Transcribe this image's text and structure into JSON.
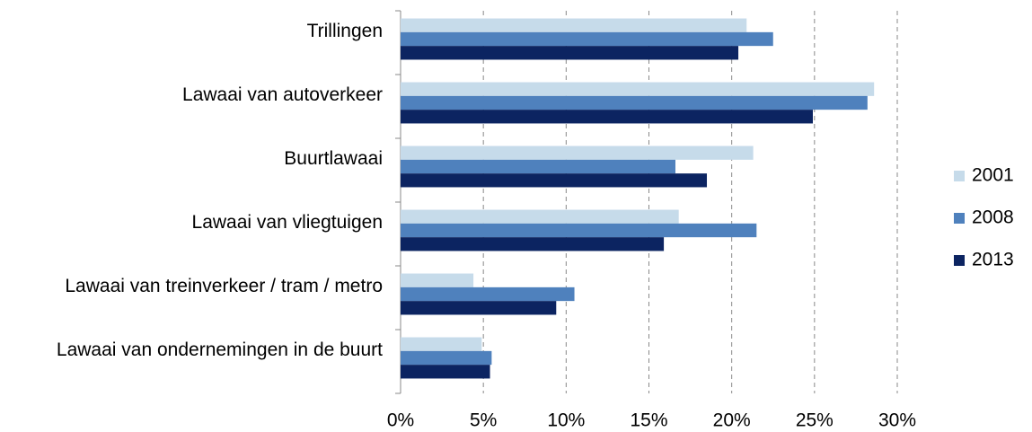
{
  "chart_data": {
    "type": "hbar",
    "categories": [
      "Trillingen",
      "Lawaai van autoverkeer",
      "Buurtlawaai",
      "Lawaai van vliegtuigen",
      "Lawaai van treinverkeer / tram / metro",
      "Lawaai van ondernemingen in de buurt"
    ],
    "series": [
      {
        "name": "2001",
        "color": "#c6dbea",
        "values": [
          20.9,
          28.6,
          21.3,
          16.8,
          4.4,
          4.9
        ]
      },
      {
        "name": "2008",
        "color": "#4f81bd",
        "values": [
          22.5,
          28.2,
          16.6,
          21.5,
          10.5,
          5.5
        ]
      },
      {
        "name": "2013",
        "color": "#0c2461",
        "values": [
          20.4,
          24.9,
          18.5,
          15.9,
          9.4,
          5.4
        ]
      }
    ],
    "xlim": [
      0,
      30
    ],
    "xticks": [
      {
        "value": 0,
        "label": "0%"
      },
      {
        "value": 5,
        "label": "5%"
      },
      {
        "value": 10,
        "label": "10%"
      },
      {
        "value": 15,
        "label": "15%"
      },
      {
        "value": 20,
        "label": "20%"
      },
      {
        "value": 25,
        "label": "25%"
      },
      {
        "value": 30,
        "label": "30%"
      }
    ],
    "grid": true,
    "legend": "right"
  }
}
